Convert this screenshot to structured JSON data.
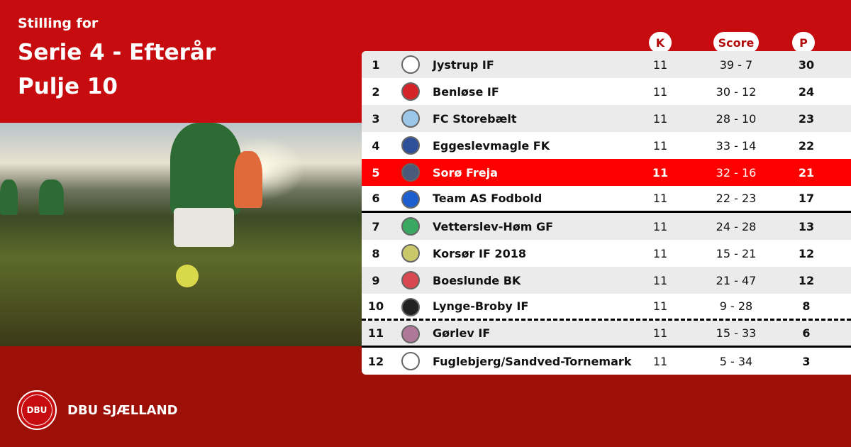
{
  "header": {
    "subtitle": "Stilling for",
    "title": "Serie 4 - Efterår",
    "pool": "Pulje 10"
  },
  "columns": {
    "k": "K",
    "score": "Score",
    "p": "P"
  },
  "colors": {
    "top_red": "#c60c0e",
    "bottom_red": "#9c1007",
    "highlight": "#fe0000"
  },
  "rows": [
    {
      "rank": "1",
      "team": "Jystrup IF",
      "k": "11",
      "score": "39 - 7",
      "p": "30",
      "logo_color": "#ffffff"
    },
    {
      "rank": "2",
      "team": "Benløse IF",
      "k": "11",
      "score": "30 - 12",
      "p": "24",
      "logo_color": "#d4242a"
    },
    {
      "rank": "3",
      "team": "FC Storebælt",
      "k": "11",
      "score": "28 - 10",
      "p": "23",
      "logo_color": "#9cc7e8"
    },
    {
      "rank": "4",
      "team": "Eggeslevmagle FK",
      "k": "11",
      "score": "33 - 14",
      "p": "22",
      "logo_color": "#2e4f9a"
    },
    {
      "rank": "5",
      "team": "Sorø Freja",
      "k": "11",
      "score": "32 - 16",
      "p": "21",
      "logo_color": "#4a5a7a",
      "highlight": true
    },
    {
      "rank": "6",
      "team": "Team AS Fodbold",
      "k": "11",
      "score": "22 - 23",
      "p": "17",
      "logo_color": "#1e5fd0"
    },
    {
      "rank": "7",
      "team": "Vetterslev-Høm GF",
      "k": "11",
      "score": "24 - 28",
      "p": "13",
      "logo_color": "#3aa860"
    },
    {
      "rank": "8",
      "team": "Korsør IF 2018",
      "k": "11",
      "score": "15 - 21",
      "p": "12",
      "logo_color": "#c9c86a"
    },
    {
      "rank": "9",
      "team": "Boeslunde BK",
      "k": "11",
      "score": "21 - 47",
      "p": "12",
      "logo_color": "#d84850"
    },
    {
      "rank": "10",
      "team": "Lynge-Broby IF",
      "k": "11",
      "score": "9 - 28",
      "p": "8",
      "logo_color": "#222222"
    },
    {
      "rank": "11",
      "team": "Gørlev IF",
      "k": "11",
      "score": "15 - 33",
      "p": "6",
      "logo_color": "#b07898"
    },
    {
      "rank": "12",
      "team": "Fuglebjerg/Sandved-Tornemark",
      "k": "11",
      "score": "5 - 34",
      "p": "3",
      "logo_color": "#ffffff"
    }
  ],
  "footer": {
    "brand": "DBU SJÆLLAND",
    "seal_text": "DBU"
  }
}
